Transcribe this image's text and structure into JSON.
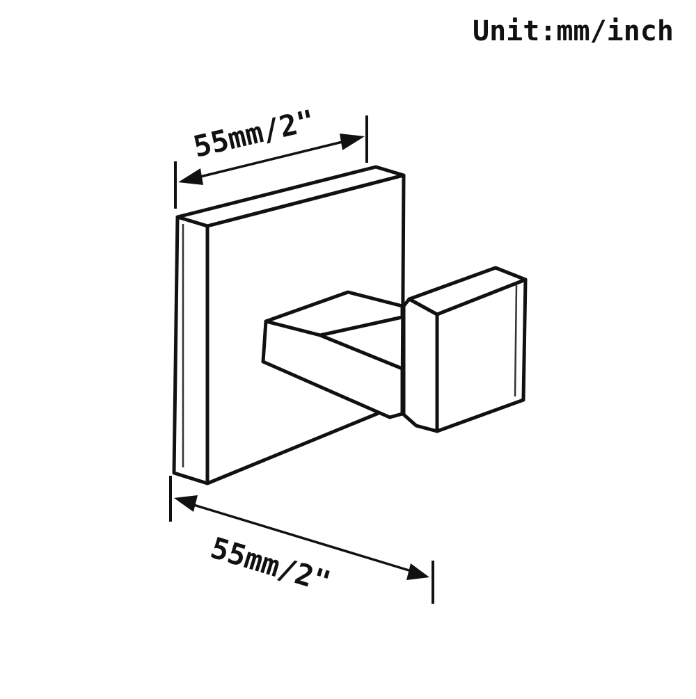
{
  "unit_label": "Unit:mm/inch",
  "dimensions": {
    "top_width": "55mm/2\"",
    "bottom_width": "55mm/2\""
  },
  "colors": {
    "background": "#ffffff",
    "line": "#111111"
  }
}
